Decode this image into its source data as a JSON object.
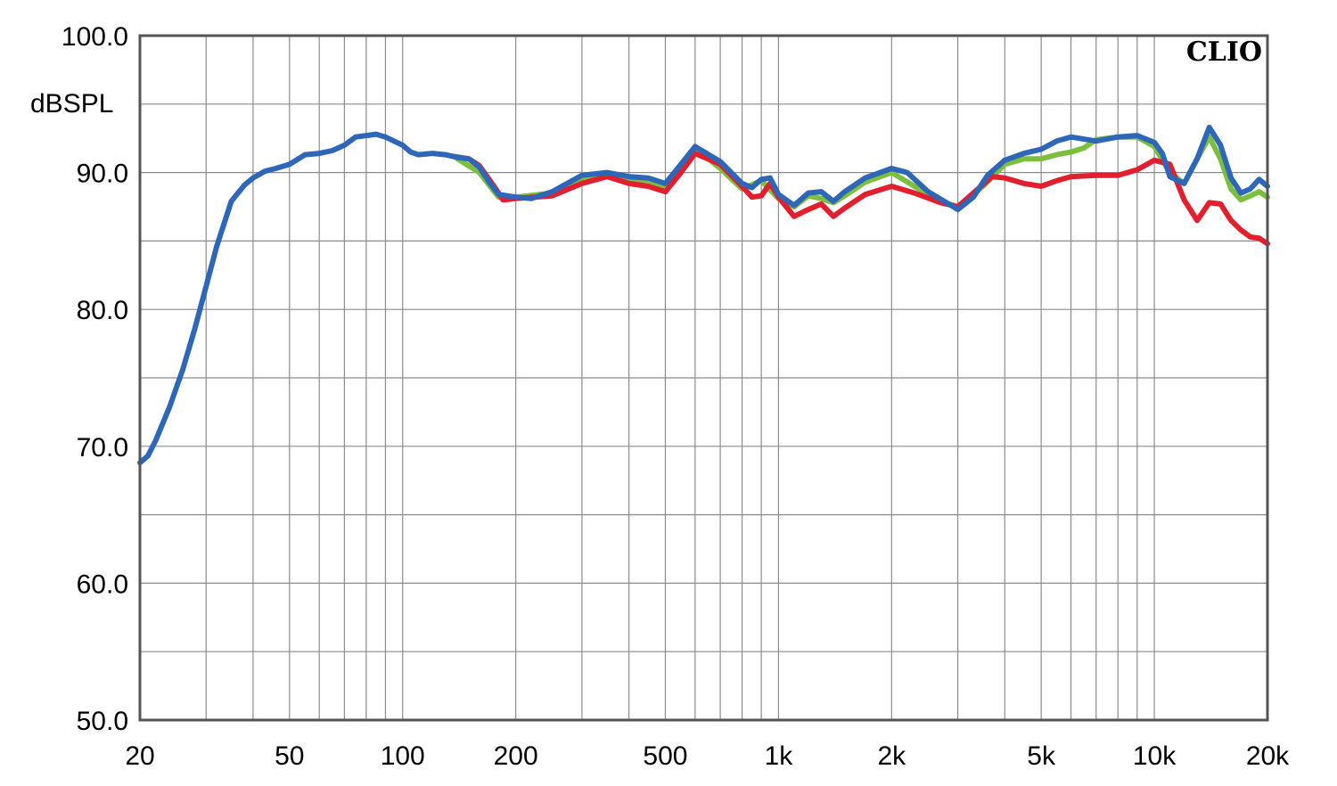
{
  "chart_data": {
    "type": "line",
    "brand": "CLIO",
    "ylabel": "dBSPL",
    "xscale": "log",
    "xlim": [
      20,
      20000
    ],
    "ylim": [
      50,
      100
    ],
    "grid": true,
    "yticks": [
      {
        "value": 100,
        "label": "100.0"
      },
      {
        "value": 90,
        "label": "90.0"
      },
      {
        "value": 80,
        "label": "80.0"
      },
      {
        "value": 70,
        "label": "70.0"
      },
      {
        "value": 60,
        "label": "60.0"
      },
      {
        "value": 50,
        "label": "50.0"
      }
    ],
    "xticks": [
      {
        "value": 20,
        "label": "20"
      },
      {
        "value": 50,
        "label": "50"
      },
      {
        "value": 100,
        "label": "100"
      },
      {
        "value": 200,
        "label": "200"
      },
      {
        "value": 500,
        "label": "500"
      },
      {
        "value": 1000,
        "label": "1k"
      },
      {
        "value": 2000,
        "label": "2k"
      },
      {
        "value": 5000,
        "label": "5k"
      },
      {
        "value": 10000,
        "label": "10k"
      },
      {
        "value": 20000,
        "label": "20k"
      }
    ],
    "series": [
      {
        "color": "#7cbf3f",
        "points": [
          [
            140,
            91.0
          ],
          [
            160,
            90.0
          ],
          [
            180,
            88.2
          ],
          [
            200,
            88.2
          ],
          [
            250,
            88.5
          ],
          [
            300,
            89.6
          ],
          [
            350,
            89.8
          ],
          [
            400,
            89.4
          ],
          [
            450,
            89.4
          ],
          [
            500,
            89.0
          ],
          [
            550,
            90.5
          ],
          [
            600,
            91.8
          ],
          [
            700,
            90.3
          ],
          [
            800,
            88.8
          ],
          [
            900,
            89.4
          ],
          [
            1000,
            88.1
          ],
          [
            1100,
            87.5
          ],
          [
            1200,
            88.3
          ],
          [
            1300,
            88.1
          ],
          [
            1400,
            87.8
          ],
          [
            1500,
            88.3
          ],
          [
            1700,
            89.3
          ],
          [
            2000,
            90.0
          ],
          [
            2300,
            89.0
          ],
          [
            2700,
            87.9
          ],
          [
            3000,
            87.5
          ],
          [
            3500,
            89.0
          ],
          [
            4000,
            90.6
          ],
          [
            4500,
            91.0
          ],
          [
            5000,
            91.0
          ],
          [
            5500,
            91.3
          ],
          [
            6000,
            91.5
          ],
          [
            6500,
            91.8
          ],
          [
            7000,
            92.4
          ],
          [
            8000,
            92.6
          ],
          [
            9000,
            92.6
          ],
          [
            10000,
            91.9
          ],
          [
            11000,
            90.0
          ],
          [
            12000,
            89.2
          ],
          [
            13000,
            91.0
          ],
          [
            14000,
            92.6
          ],
          [
            15000,
            91.0
          ],
          [
            16000,
            88.8
          ],
          [
            17000,
            88.0
          ],
          [
            18000,
            88.3
          ],
          [
            19000,
            88.6
          ],
          [
            20000,
            88.2
          ]
        ]
      },
      {
        "color": "#e0202e",
        "points": [
          [
            135,
            91.2
          ],
          [
            150,
            91.0
          ],
          [
            160,
            90.5
          ],
          [
            175,
            89.0
          ],
          [
            185,
            88.0
          ],
          [
            200,
            88.1
          ],
          [
            250,
            88.3
          ],
          [
            300,
            89.2
          ],
          [
            350,
            89.7
          ],
          [
            400,
            89.2
          ],
          [
            450,
            89.0
          ],
          [
            500,
            88.6
          ],
          [
            550,
            90.0
          ],
          [
            600,
            91.4
          ],
          [
            700,
            90.6
          ],
          [
            800,
            89.0
          ],
          [
            850,
            88.2
          ],
          [
            900,
            88.3
          ],
          [
            950,
            89.2
          ],
          [
            1000,
            88.2
          ],
          [
            1100,
            86.8
          ],
          [
            1200,
            87.3
          ],
          [
            1300,
            87.7
          ],
          [
            1400,
            86.8
          ],
          [
            1500,
            87.4
          ],
          [
            1700,
            88.4
          ],
          [
            2000,
            89.0
          ],
          [
            2300,
            88.5
          ],
          [
            2700,
            87.8
          ],
          [
            3000,
            87.5
          ],
          [
            3300,
            88.5
          ],
          [
            3700,
            89.7
          ],
          [
            4000,
            89.6
          ],
          [
            4500,
            89.2
          ],
          [
            5000,
            89.0
          ],
          [
            5500,
            89.4
          ],
          [
            6000,
            89.7
          ],
          [
            7000,
            89.8
          ],
          [
            8000,
            89.8
          ],
          [
            9000,
            90.2
          ],
          [
            10000,
            90.9
          ],
          [
            11000,
            90.6
          ],
          [
            12000,
            88.0
          ],
          [
            13000,
            86.5
          ],
          [
            14000,
            87.8
          ],
          [
            15000,
            87.7
          ],
          [
            16000,
            86.5
          ],
          [
            17000,
            85.8
          ],
          [
            18000,
            85.3
          ],
          [
            19000,
            85.2
          ],
          [
            20000,
            84.8
          ]
        ]
      },
      {
        "color": "#2e66b8",
        "points": [
          [
            20,
            68.8
          ],
          [
            21,
            69.3
          ],
          [
            22,
            70.4
          ],
          [
            24,
            72.9
          ],
          [
            26,
            75.6
          ],
          [
            28,
            78.6
          ],
          [
            30,
            81.7
          ],
          [
            32,
            84.6
          ],
          [
            35,
            87.9
          ],
          [
            38,
            89.1
          ],
          [
            40,
            89.6
          ],
          [
            43,
            90.1
          ],
          [
            46,
            90.3
          ],
          [
            50,
            90.6
          ],
          [
            55,
            91.3
          ],
          [
            60,
            91.4
          ],
          [
            65,
            91.6
          ],
          [
            70,
            92.0
          ],
          [
            75,
            92.6
          ],
          [
            80,
            92.7
          ],
          [
            85,
            92.8
          ],
          [
            90,
            92.6
          ],
          [
            100,
            92.0
          ],
          [
            105,
            91.5
          ],
          [
            110,
            91.3
          ],
          [
            120,
            91.4
          ],
          [
            130,
            91.3
          ],
          [
            140,
            91.1
          ],
          [
            150,
            91.0
          ],
          [
            160,
            90.4
          ],
          [
            170,
            89.3
          ],
          [
            180,
            88.4
          ],
          [
            200,
            88.2
          ],
          [
            220,
            88.1
          ],
          [
            250,
            88.6
          ],
          [
            300,
            89.8
          ],
          [
            350,
            90.0
          ],
          [
            400,
            89.7
          ],
          [
            450,
            89.6
          ],
          [
            500,
            89.2
          ],
          [
            550,
            90.6
          ],
          [
            600,
            91.9
          ],
          [
            700,
            90.8
          ],
          [
            800,
            89.2
          ],
          [
            850,
            88.9
          ],
          [
            900,
            89.5
          ],
          [
            950,
            89.6
          ],
          [
            1000,
            88.4
          ],
          [
            1100,
            87.6
          ],
          [
            1200,
            88.5
          ],
          [
            1300,
            88.6
          ],
          [
            1400,
            87.9
          ],
          [
            1500,
            88.6
          ],
          [
            1700,
            89.6
          ],
          [
            2000,
            90.3
          ],
          [
            2200,
            90.0
          ],
          [
            2500,
            88.6
          ],
          [
            2800,
            87.8
          ],
          [
            3000,
            87.3
          ],
          [
            3300,
            88.2
          ],
          [
            3600,
            89.8
          ],
          [
            4000,
            90.9
          ],
          [
            4500,
            91.4
          ],
          [
            5000,
            91.7
          ],
          [
            5500,
            92.3
          ],
          [
            6000,
            92.6
          ],
          [
            7000,
            92.3
          ],
          [
            8000,
            92.6
          ],
          [
            9000,
            92.7
          ],
          [
            10000,
            92.2
          ],
          [
            10500,
            91.4
          ],
          [
            11000,
            89.7
          ],
          [
            12000,
            89.2
          ],
          [
            13000,
            91.0
          ],
          [
            14000,
            93.3
          ],
          [
            15000,
            92.0
          ],
          [
            16000,
            89.6
          ],
          [
            17000,
            88.5
          ],
          [
            18000,
            88.8
          ],
          [
            19000,
            89.5
          ],
          [
            20000,
            89.0
          ]
        ]
      }
    ]
  }
}
